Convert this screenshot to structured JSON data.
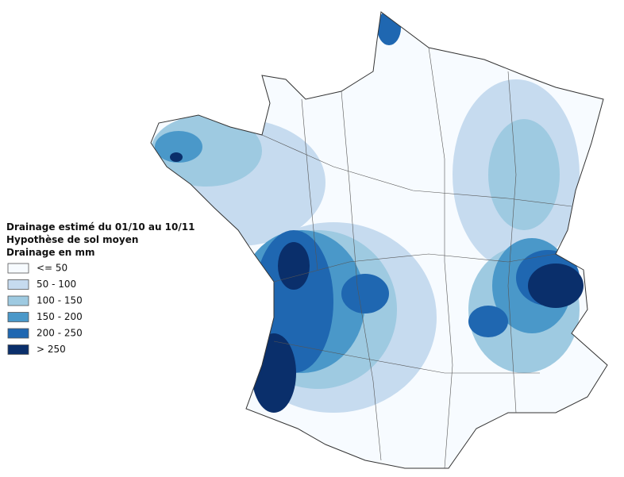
{
  "legend": {
    "title_lines": [
      "Drainage estimé du 01/10 au 10/11",
      "Hypothèse de sol moyen",
      "Drainage en mm"
    ],
    "classes": [
      {
        "label": "<= 50",
        "color": "#f7fbff"
      },
      {
        "label": "50 - 100",
        "color": "#c6dbef"
      },
      {
        "label": "100 - 150",
        "color": "#9ecae1"
      },
      {
        "label": "150 - 200",
        "color": "#4a98c9"
      },
      {
        "label": "200 - 250",
        "color": "#1f67b1"
      },
      {
        "label": "> 250",
        "color": "#0a2f6b"
      }
    ]
  }
}
